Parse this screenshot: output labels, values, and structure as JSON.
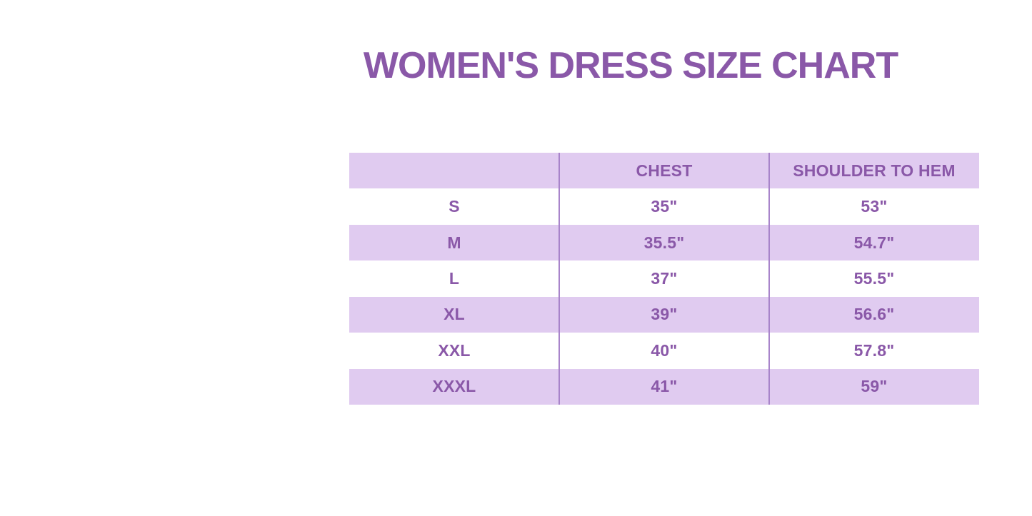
{
  "page_title": "WOMEN'S DRESS SIZE CHART",
  "colors": {
    "accent": "#8a58a8",
    "row_alt": "#e0cbf0",
    "divider": "#a884ca",
    "page_bg": "#ffffff"
  },
  "table": {
    "headers": [
      "",
      "CHEST",
      "SHOULDER TO HEM"
    ],
    "rows": [
      {
        "size": "S",
        "chest": "35\"",
        "shoulder_to_hem": "53\""
      },
      {
        "size": "M",
        "chest": "35.5\"",
        "shoulder_to_hem": "54.7\""
      },
      {
        "size": "L",
        "chest": "37\"",
        "shoulder_to_hem": "55.5\""
      },
      {
        "size": "XL",
        "chest": "39\"",
        "shoulder_to_hem": "56.6\""
      },
      {
        "size": "XXL",
        "chest": "40\"",
        "shoulder_to_hem": "57.8\""
      },
      {
        "size": "XXXL",
        "chest": "41\"",
        "shoulder_to_hem": "59\""
      }
    ]
  },
  "chart_data": {
    "type": "table",
    "title": "WOMEN'S DRESS SIZE CHART",
    "columns": [
      "",
      "CHEST",
      "SHOULDER TO HEM"
    ],
    "rows": [
      [
        "S",
        "35\"",
        "53\""
      ],
      [
        "M",
        "35.5\"",
        "54.7\""
      ],
      [
        "L",
        "37\"",
        "55.5\""
      ],
      [
        "XL",
        "39\"",
        "56.6\""
      ],
      [
        "XXL",
        "40\"",
        "57.8\""
      ],
      [
        "XXXL",
        "41\"",
        "59\""
      ]
    ],
    "units": "inches",
    "layout": {
      "alternating_row_colors": true,
      "column_dividers": true,
      "horizontal_gridlines": false
    }
  }
}
